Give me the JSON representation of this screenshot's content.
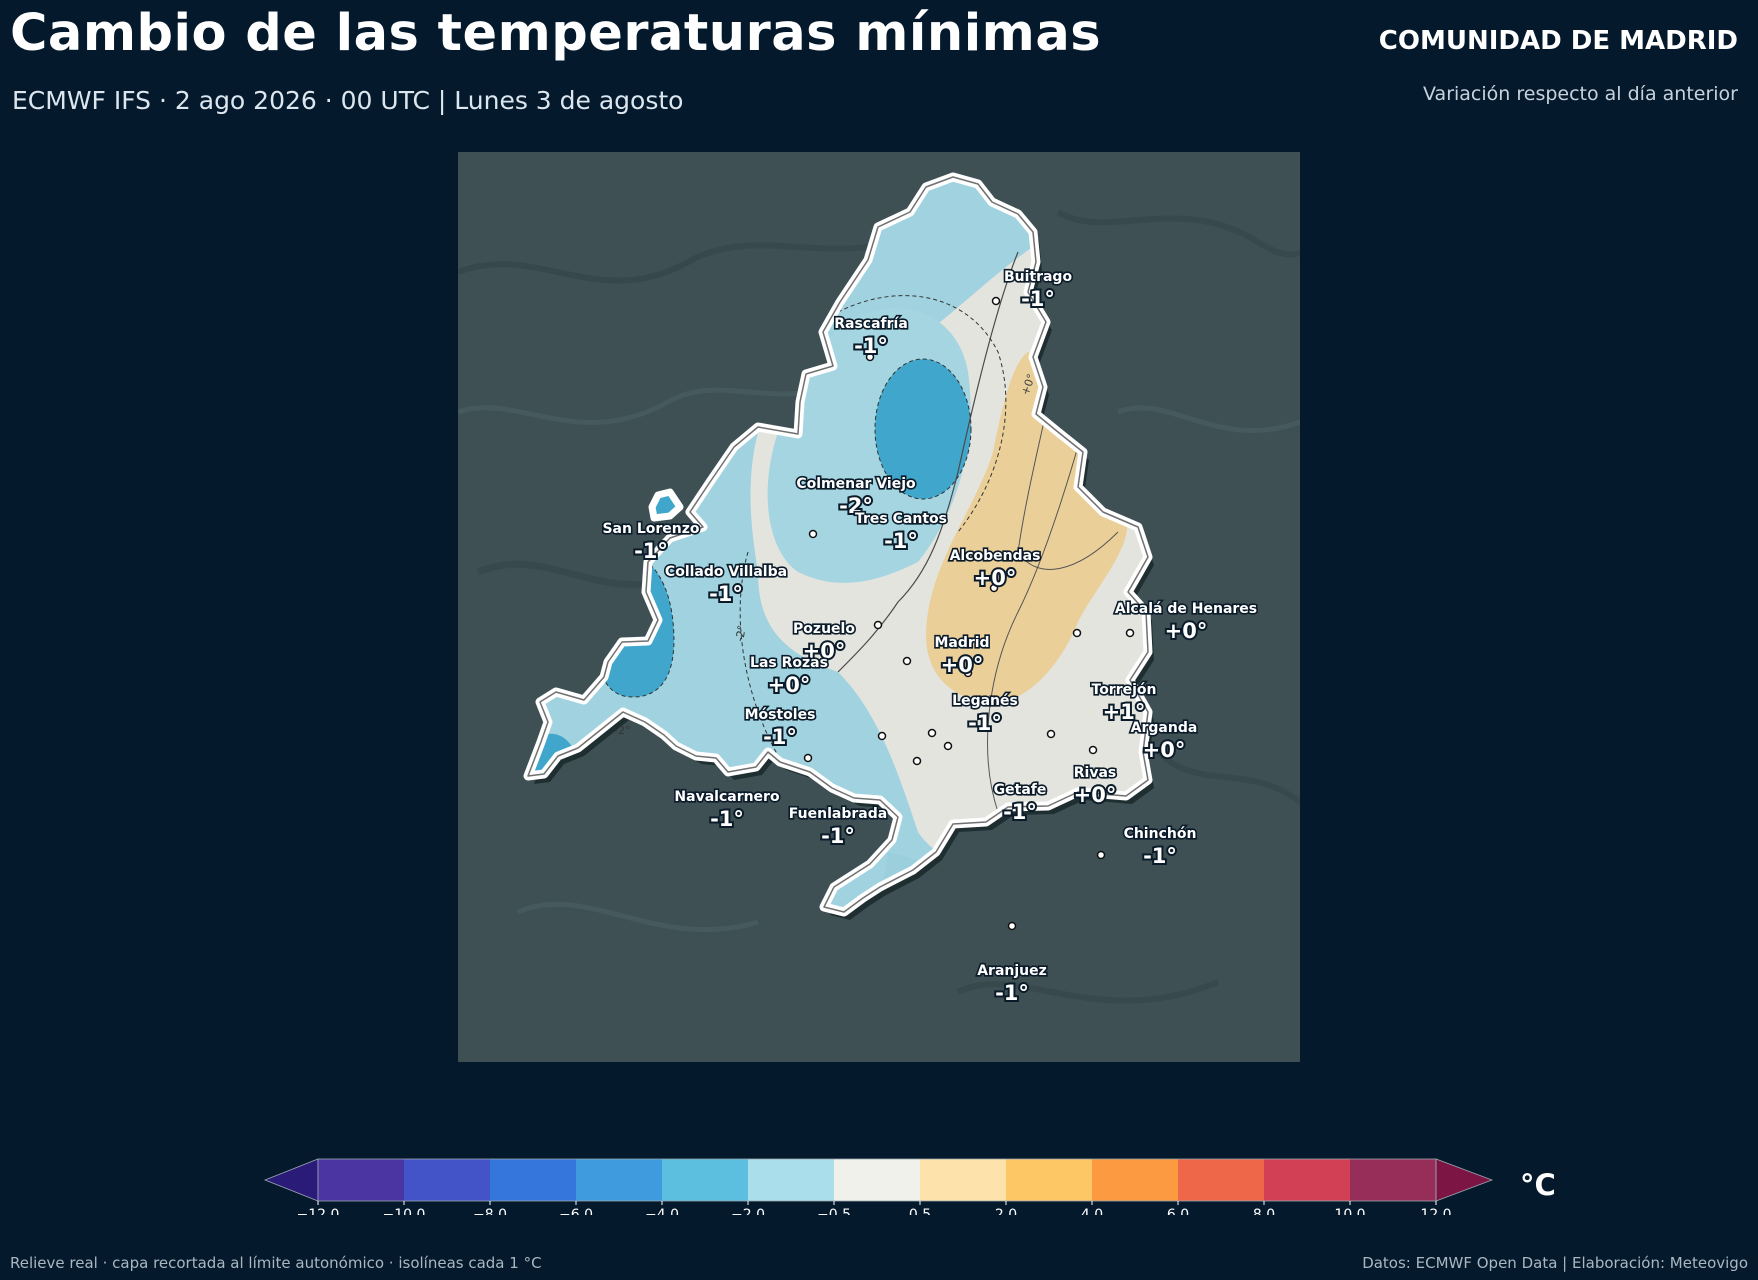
{
  "header": {
    "title": "Cambio de las temperaturas mínimas",
    "subtitle": "ECMWF IFS · 2 ago 2026 · 00 UTC  |  Lunes 3 de agosto",
    "region": "COMUNIDAD DE MADRID",
    "region_subtitle": "Variación respecto al día anterior"
  },
  "map": {
    "land_color": "#3e5054",
    "outline_color": "#ffffff",
    "isoline_labels": [
      "+0°",
      "-2°",
      "-2°"
    ],
    "cities": [
      {
        "name": "Buitrago",
        "value": "-1°"
      },
      {
        "name": "Rascafría",
        "value": "-1°"
      },
      {
        "name": "Colmenar Viejo",
        "value": "-2°"
      },
      {
        "name": "Tres Cantos",
        "value": "-1°"
      },
      {
        "name": "San Lorenzo",
        "value": "-1°"
      },
      {
        "name": "Alcobendas",
        "value": "+0°"
      },
      {
        "name": "Collado Villalba",
        "value": "-1°"
      },
      {
        "name": "Alcalá de Henares",
        "value": "+0°"
      },
      {
        "name": "Pozuelo",
        "value": "+0°"
      },
      {
        "name": "Madrid",
        "value": "+0°"
      },
      {
        "name": "Las Rozas",
        "value": "+0°"
      },
      {
        "name": "Torrejón",
        "value": "+1°"
      },
      {
        "name": "Leganés",
        "value": "-1°"
      },
      {
        "name": "Móstoles",
        "value": "-1°"
      },
      {
        "name": "Arganda",
        "value": "+0°"
      },
      {
        "name": "Rivas",
        "value": "+0°"
      },
      {
        "name": "Getafe",
        "value": "-1°"
      },
      {
        "name": "Navalcarnero",
        "value": "-1°"
      },
      {
        "name": "Fuenlabrada",
        "value": "-1°"
      },
      {
        "name": "Chinchón",
        "value": "-1°"
      },
      {
        "name": "Aranjuez",
        "value": "-1°"
      }
    ]
  },
  "colorbar": {
    "unit": "°C",
    "ticks": [
      "−12.0",
      "−10.0",
      "−8.0",
      "−6.0",
      "−4.0",
      "−2.0",
      "−0.5",
      "0.5",
      "2.0",
      "4.0",
      "6.0",
      "8.0",
      "10.0",
      "12.0"
    ],
    "under_color": "#2a1b78",
    "over_color": "#7c1444",
    "colors": [
      "#4a35a3",
      "#4353c8",
      "#3476dc",
      "#3f9ade",
      "#5cbfe0",
      "#abdeeb",
      "#f1f1ec",
      "#fde3ab",
      "#fec766",
      "#fb9a40",
      "#ef6749",
      "#d24055",
      "#972e5a"
    ]
  },
  "footer": {
    "left": "Relieve real · capa recortada al límite autonómico · isolíneas cada 1 °C",
    "right": "Datos: ECMWF Open Data | Elaboración: Meteovigo"
  }
}
